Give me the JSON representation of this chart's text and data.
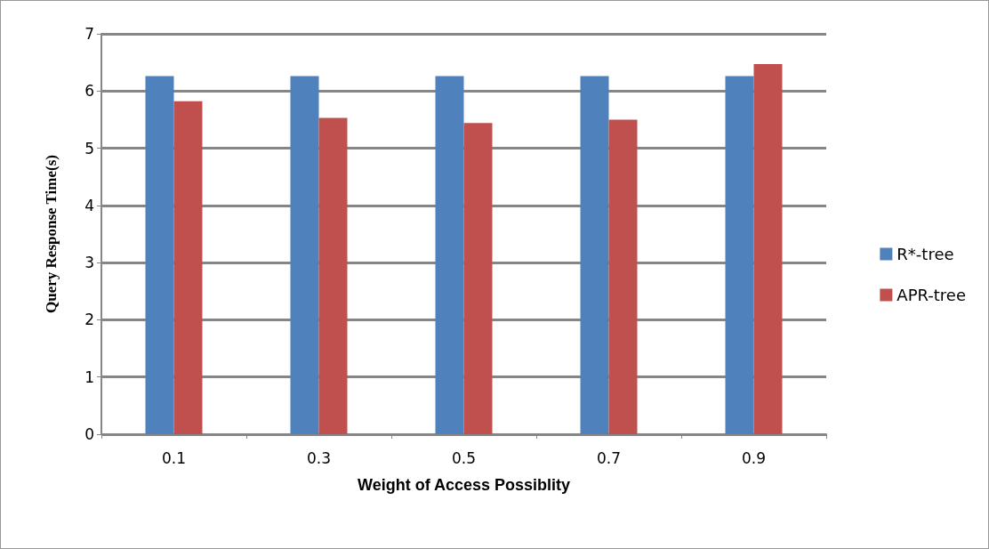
{
  "chart_data": {
    "type": "bar",
    "xlabel": "Weight of Access Possiblity",
    "ylabel": "Query Response Time(s)",
    "categories": [
      "0.1",
      "0.3",
      "0.5",
      "0.7",
      "0.9"
    ],
    "series": [
      {
        "name": "R*-tree",
        "color": "#4f81bd",
        "values": [
          6.26,
          6.26,
          6.26,
          6.26,
          6.26
        ]
      },
      {
        "name": "APR-tree",
        "color": "#c0504d",
        "values": [
          5.82,
          5.53,
          5.44,
          5.5,
          6.47
        ]
      }
    ],
    "ylim": [
      0,
      7
    ],
    "yticks": [
      0,
      1,
      2,
      3,
      4,
      5,
      6,
      7
    ],
    "grid": "y",
    "legend": "right"
  }
}
